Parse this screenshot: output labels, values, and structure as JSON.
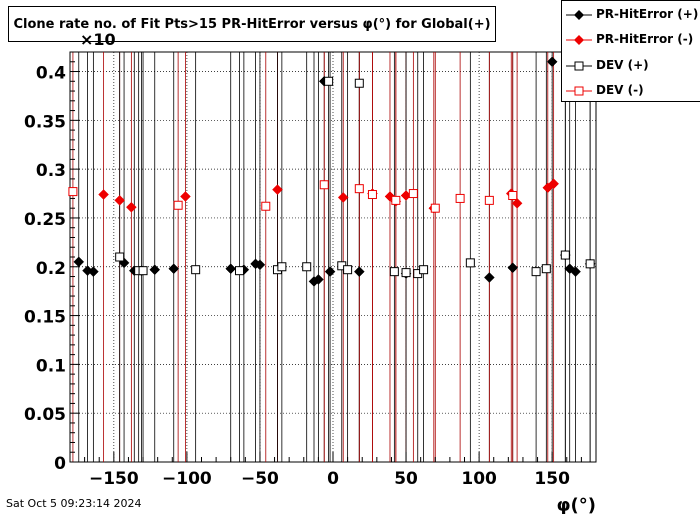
{
  "chart_data": {
    "type": "scatter",
    "title": "Clone rate no. of Fit Pts>15 PR-HitError versus φ(°) for Global(+)",
    "xlabel": "φ(°)",
    "ylabel": "",
    "exponent_label": "×10",
    "xlim": [
      -180,
      180
    ],
    "ylim": [
      0,
      0.42
    ],
    "x_ticks": [
      -150,
      -100,
      -50,
      0,
      50,
      100,
      150
    ],
    "x_tick_labels": [
      "−150",
      "−100",
      "−50",
      "0",
      "50",
      "100",
      "150"
    ],
    "y_ticks": [
      0,
      0.05,
      0.1,
      0.15,
      0.2,
      0.25,
      0.3,
      0.35,
      0.4
    ],
    "y_tick_labels": [
      "0",
      "0.05",
      "0.1",
      "0.15",
      "0.2",
      "0.25",
      "0.3",
      "0.35",
      "0.4"
    ],
    "grid": true,
    "legend_position": "top-right",
    "series": [
      {
        "name": "PR-HitError (+)",
        "color": "#000000",
        "marker": "diamond-filled",
        "x": [
          -174,
          -168,
          -164,
          -143,
          -136,
          -131,
          -122,
          -109,
          -70,
          -61,
          -53,
          -50,
          -13,
          -10,
          -6,
          -2,
          18,
          50,
          107,
          123,
          150,
          159,
          162,
          166,
          176
        ],
        "y": [
          0.205,
          0.196,
          0.195,
          0.204,
          0.196,
          0.196,
          0.197,
          0.198,
          0.198,
          0.197,
          0.203,
          0.202,
          0.185,
          0.187,
          0.39,
          0.195,
          0.195,
          0.193,
          0.189,
          0.199,
          0.41,
          0.212,
          0.198,
          0.195,
          0.203
        ]
      },
      {
        "name": "PR-HitError (-)",
        "color": "#ee0000",
        "marker": "diamond-filled",
        "x": [
          -157,
          -146,
          -138,
          -101,
          -38,
          7,
          27,
          39,
          43,
          50,
          69,
          122,
          126,
          147,
          151
        ],
        "y": [
          0.274,
          0.268,
          0.261,
          0.272,
          0.279,
          0.271,
          0.275,
          0.272,
          0.267,
          0.273,
          0.26,
          0.275,
          0.265,
          0.281,
          0.285
        ]
      },
      {
        "name": "DEV (+)",
        "color": "#000000",
        "marker": "square-open",
        "x": [
          -146,
          -133,
          -130,
          -94,
          -64,
          -38,
          -35,
          -18,
          6,
          10,
          18,
          42,
          50,
          58,
          62,
          94,
          139,
          146,
          159,
          176,
          -3
        ],
        "y": [
          0.21,
          0.196,
          0.196,
          0.197,
          0.196,
          0.197,
          0.2,
          0.2,
          0.201,
          0.197,
          0.388,
          0.195,
          0.194,
          0.193,
          0.197,
          0.204,
          0.195,
          0.198,
          0.212,
          0.203,
          0.39
        ]
      },
      {
        "name": "DEV (-)",
        "color": "#ee0000",
        "marker": "square-open",
        "x": [
          -178,
          -106,
          -46,
          -6,
          18,
          27,
          43,
          55,
          70,
          87,
          107,
          123
        ],
        "y": [
          0.277,
          0.263,
          0.262,
          0.284,
          0.28,
          0.274,
          0.268,
          0.275,
          0.26,
          0.27,
          0.268,
          0.273
        ]
      }
    ]
  },
  "footer": {
    "timestamp": "Sat Oct  5 09:23:14 2024"
  }
}
